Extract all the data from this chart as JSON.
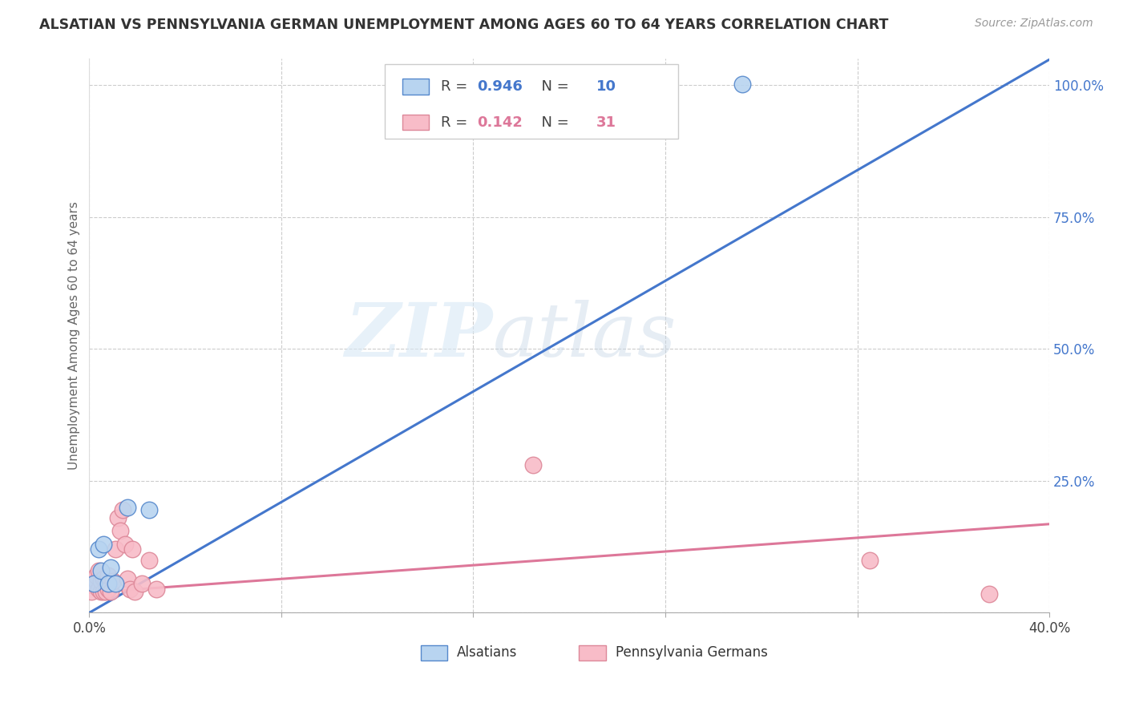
{
  "title": "ALSATIAN VS PENNSYLVANIA GERMAN UNEMPLOYMENT AMONG AGES 60 TO 64 YEARS CORRELATION CHART",
  "source": "Source: ZipAtlas.com",
  "ylabel": "Unemployment Among Ages 60 to 64 years",
  "xlim": [
    0.0,
    0.4
  ],
  "ylim": [
    0.0,
    1.05
  ],
  "xtick_positions": [
    0.0,
    0.08,
    0.16,
    0.24,
    0.32,
    0.4
  ],
  "xtick_labels": [
    "0.0%",
    "",
    "",
    "",
    "",
    "40.0%"
  ],
  "yticks_right": [
    0.0,
    0.25,
    0.5,
    0.75,
    1.0
  ],
  "ytick_right_labels": [
    "",
    "25.0%",
    "50.0%",
    "75.0%",
    "100.0%"
  ],
  "grid_color": "#cccccc",
  "background_color": "#ffffff",
  "alsatians_color": "#b8d4f0",
  "alsatians_edge_color": "#5588cc",
  "pg_color": "#f8bcc8",
  "pg_edge_color": "#dd8899",
  "blue_line_color": "#4477cc",
  "pink_line_color": "#dd7799",
  "legend_label1": "Alsatians",
  "legend_label2": "Pennsylvania Germans",
  "watermark_zip": "ZIP",
  "watermark_atlas": "atlas",
  "blue_line_x": [
    0.0,
    0.4
  ],
  "blue_line_y": [
    0.0,
    1.048
  ],
  "pink_line_x": [
    0.0,
    0.4
  ],
  "pink_line_y": [
    0.038,
    0.168
  ],
  "alsatians_x": [
    0.002,
    0.004,
    0.005,
    0.006,
    0.008,
    0.009,
    0.011,
    0.016,
    0.025,
    0.272
  ],
  "alsatians_y": [
    0.055,
    0.12,
    0.08,
    0.13,
    0.055,
    0.085,
    0.055,
    0.2,
    0.195,
    1.002
  ],
  "pg_x": [
    0.001,
    0.002,
    0.003,
    0.003,
    0.004,
    0.004,
    0.005,
    0.005,
    0.006,
    0.006,
    0.007,
    0.007,
    0.008,
    0.008,
    0.009,
    0.01,
    0.011,
    0.012,
    0.013,
    0.014,
    0.015,
    0.016,
    0.017,
    0.018,
    0.019,
    0.022,
    0.025,
    0.028,
    0.185,
    0.325,
    0.375
  ],
  "pg_y": [
    0.04,
    0.055,
    0.06,
    0.07,
    0.045,
    0.08,
    0.04,
    0.06,
    0.04,
    0.065,
    0.04,
    0.06,
    0.045,
    0.07,
    0.04,
    0.06,
    0.12,
    0.18,
    0.155,
    0.195,
    0.13,
    0.065,
    0.045,
    0.12,
    0.04,
    0.055,
    0.1,
    0.045,
    0.28,
    0.1,
    0.035
  ]
}
